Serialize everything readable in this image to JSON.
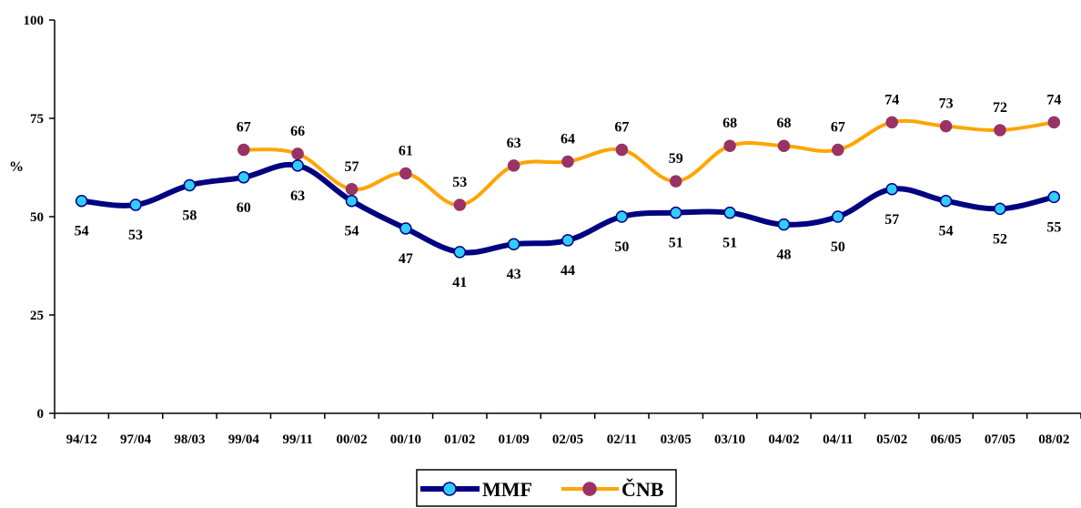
{
  "chart_data": {
    "type": "line",
    "categories": [
      "94/12",
      "97/04",
      "98/03",
      "99/04",
      "99/11",
      "00/02",
      "00/10",
      "01/02",
      "01/09",
      "02/05",
      "02/11",
      "03/05",
      "03/10",
      "04/02",
      "04/11",
      "05/02",
      "06/05",
      "07/05",
      "08/02"
    ],
    "series": [
      {
        "name": "MMF",
        "values": [
          54,
          53,
          58,
          60,
          63,
          54,
          47,
          41,
          43,
          44,
          50,
          51,
          51,
          48,
          50,
          57,
          54,
          52,
          55
        ],
        "color": "#000080",
        "marker_color": "#33ccff"
      },
      {
        "name": "ČNB",
        "values": [
          null,
          null,
          null,
          67,
          66,
          57,
          61,
          53,
          63,
          64,
          67,
          59,
          68,
          68,
          67,
          74,
          73,
          72,
          74
        ],
        "color": "#ffa500",
        "marker_color": "#993366"
      }
    ],
    "ylabel": "%",
    "ylim": [
      0,
      100
    ],
    "yticks": [
      0,
      25,
      50,
      75,
      100
    ],
    "legend_position": "bottom-center",
    "grid": false
  }
}
